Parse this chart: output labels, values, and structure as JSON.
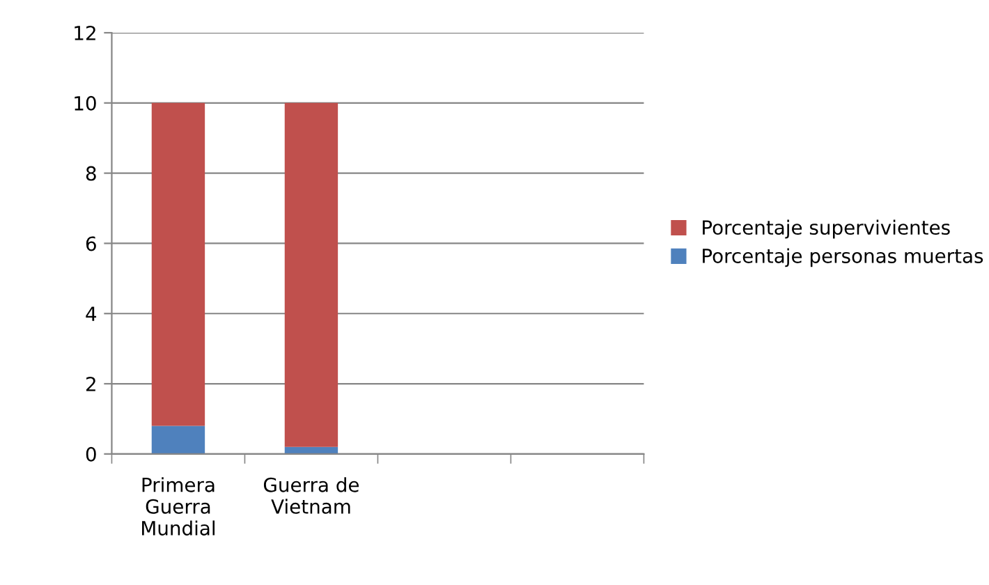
{
  "chart_data": {
    "type": "bar",
    "stacked": true,
    "categories": [
      "Primera\nGuerra\nMundial",
      "Guerra de\nVietnam",
      null,
      null
    ],
    "series": [
      {
        "name": "Porcentaje personas muertas",
        "color": "#4f81bd",
        "values": [
          0.8,
          0.2,
          null,
          null
        ]
      },
      {
        "name": "Porcentaje supervivientes",
        "color": "#c0504d",
        "values": [
          9.2,
          9.8,
          null,
          null
        ]
      }
    ],
    "ylim": [
      0,
      12
    ],
    "yticks": [
      0,
      2,
      4,
      6,
      8,
      10,
      12
    ],
    "grid": "y",
    "legend": "right"
  }
}
